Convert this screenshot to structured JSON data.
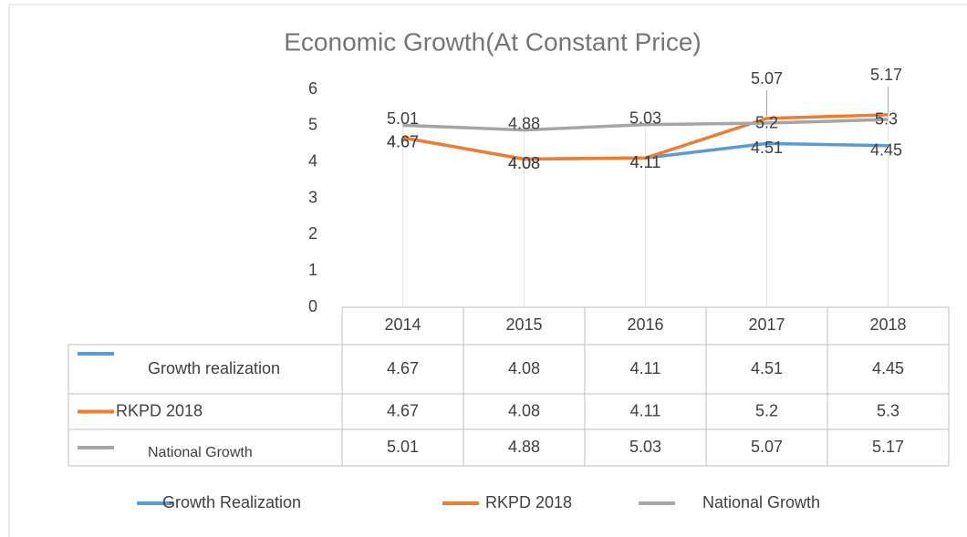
{
  "chart_data": {
    "type": "line",
    "title": "Economic Growth(At Constant Price)",
    "categories": [
      "2014",
      "2015",
      "2016",
      "2017",
      "2018"
    ],
    "series": [
      {
        "name": "Growth Realization",
        "table_label": "Growth realization",
        "color": "#5b9bd5",
        "values": [
          4.67,
          4.08,
          4.11,
          4.51,
          4.45
        ]
      },
      {
        "name": "RKPD 2018",
        "table_label": "RKPD 2018",
        "color": "#ed7d31",
        "values": [
          4.67,
          4.08,
          4.11,
          5.2,
          5.3
        ]
      },
      {
        "name": "National Growth",
        "table_label": "National Growth",
        "color": "#a5a5a5",
        "values": [
          5.01,
          4.88,
          5.03,
          5.07,
          5.17
        ]
      }
    ],
    "ylim": [
      0,
      6
    ],
    "yticks": [
      0,
      1,
      2,
      3,
      4,
      5,
      6
    ],
    "grid": false
  }
}
